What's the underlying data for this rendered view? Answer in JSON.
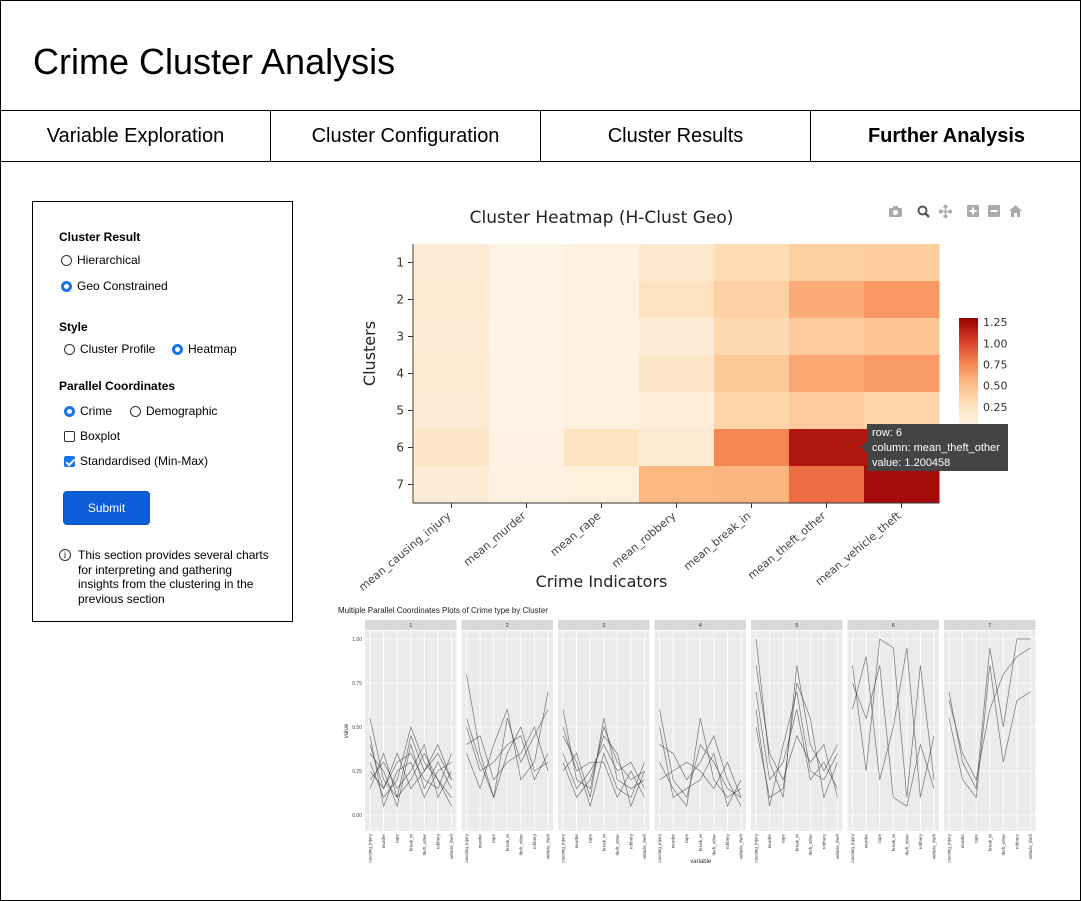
{
  "app": {
    "title": "Crime Cluster Analysis"
  },
  "tabs": [
    {
      "label": "Variable Exploration",
      "active": false
    },
    {
      "label": "Cluster Configuration",
      "active": false
    },
    {
      "label": "Cluster Results",
      "active": false
    },
    {
      "label": "Further Analysis",
      "active": true
    }
  ],
  "sidebar": {
    "cluster_result": {
      "title": "Cluster Result",
      "options": [
        "Hierarchical",
        "Geo Constrained"
      ],
      "selected": "Geo Constrained"
    },
    "style": {
      "title": "Style",
      "options": [
        "Cluster Profile",
        "Heatmap"
      ],
      "selected": "Heatmap"
    },
    "parallel": {
      "title": "Parallel Coordinates",
      "options": [
        "Crime",
        "Demographic"
      ],
      "selected": "Crime",
      "boxplot_label": "Boxplot",
      "boxplot_checked": false,
      "standardised_label": "Standardised (Min-Max)",
      "standardised_checked": true
    },
    "submit_label": "Submit",
    "info_text": "This section provides several charts for interpreting and gathering insights from the clustering in the previous section"
  },
  "toolbar": {
    "icons": [
      "camera-icon",
      "zoom-icon",
      "pan-icon",
      "zoom-in-icon",
      "zoom-out-icon",
      "home-icon"
    ]
  },
  "tooltip": {
    "row": "row: 6",
    "column": "column: mean_theft_other",
    "value": "value: 1.200458"
  },
  "colors": {
    "accent": "#1a73e8",
    "button": "#0b5ed7",
    "heat_low": "#fff5eb",
    "heat_high": "#990000"
  },
  "chart_data": [
    {
      "type": "heatmap",
      "title": "Cluster Heatmap (H-Clust Geo)",
      "xlabel": "Crime Indicators",
      "ylabel": "Clusters",
      "x": [
        "mean_causing_injury",
        "mean_murder",
        "mean_rape",
        "mean_robbery",
        "mean_break_in",
        "mean_theft_other",
        "mean_vehicle_theft"
      ],
      "y": [
        "1",
        "2",
        "3",
        "4",
        "5",
        "6",
        "7"
      ],
      "z": [
        [
          0.13,
          0.03,
          0.05,
          0.16,
          0.3,
          0.4,
          0.41
        ],
        [
          0.14,
          0.03,
          0.05,
          0.26,
          0.38,
          0.6,
          0.68
        ],
        [
          0.12,
          0.03,
          0.05,
          0.12,
          0.32,
          0.42,
          0.47
        ],
        [
          0.15,
          0.03,
          0.05,
          0.2,
          0.44,
          0.62,
          0.67
        ],
        [
          0.13,
          0.03,
          0.05,
          0.1,
          0.36,
          0.42,
          0.35
        ],
        [
          0.2,
          0.04,
          0.24,
          0.14,
          0.76,
          1.2,
          1.2
        ],
        [
          0.12,
          0.05,
          0.08,
          0.55,
          0.56,
          0.86,
          1.25
        ]
      ],
      "colorbar": {
        "ticks": [
          "0.25",
          "0.50",
          "0.75",
          "1.00",
          "1.25"
        ],
        "min": 0,
        "max": 1.3
      }
    },
    {
      "type": "line",
      "title": "Multiple Parallel Coordinates Plots of Crime type by Cluster",
      "xlabel": "variable",
      "ylabel": "value",
      "panels": [
        "1",
        "2",
        "3",
        "4",
        "5",
        "6",
        "7"
      ],
      "categories": [
        "causing_injury",
        "murder",
        "rape",
        "break_in",
        "theft_other",
        "robbery",
        "vehicle_theft"
      ],
      "yticks": [
        "0.00",
        "0.25",
        "0.50",
        "0.75",
        "1.00"
      ],
      "ylim": [
        0,
        1
      ],
      "series": [
        {
          "panel": 0,
          "values": [
            0.55,
            0.2,
            0.1,
            0.45,
            0.25,
            0.35,
            0.2
          ]
        },
        {
          "panel": 0,
          "values": [
            0.4,
            0.15,
            0.3,
            0.35,
            0.2,
            0.15,
            0.35
          ]
        },
        {
          "panel": 0,
          "values": [
            0.3,
            0.1,
            0.2,
            0.5,
            0.3,
            0.2,
            0.1
          ]
        },
        {
          "panel": 0,
          "values": [
            0.2,
            0.3,
            0.15,
            0.25,
            0.4,
            0.1,
            0.25
          ]
        },
        {
          "panel": 0,
          "values": [
            0.35,
            0.25,
            0.05,
            0.4,
            0.15,
            0.3,
            0.15
          ]
        },
        {
          "panel": 0,
          "values": [
            0.45,
            0.05,
            0.25,
            0.3,
            0.1,
            0.25,
            0.3
          ]
        },
        {
          "panel": 0,
          "values": [
            0.15,
            0.35,
            0.1,
            0.2,
            0.35,
            0.2,
            0.05
          ]
        },
        {
          "panel": 0,
          "values": [
            0.25,
            0.15,
            0.35,
            0.15,
            0.25,
            0.4,
            0.2
          ]
        },
        {
          "panel": 1,
          "values": [
            0.8,
            0.35,
            0.1,
            0.55,
            0.3,
            0.45,
            0.6
          ]
        },
        {
          "panel": 1,
          "values": [
            0.5,
            0.25,
            0.3,
            0.4,
            0.45,
            0.2,
            0.35
          ]
        },
        {
          "panel": 1,
          "values": [
            0.4,
            0.45,
            0.2,
            0.3,
            0.35,
            0.5,
            0.25
          ]
        },
        {
          "panel": 1,
          "values": [
            0.35,
            0.15,
            0.4,
            0.6,
            0.2,
            0.3,
            0.7
          ]
        },
        {
          "panel": 1,
          "values": [
            0.55,
            0.3,
            0.1,
            0.35,
            0.5,
            0.25,
            0.3
          ]
        },
        {
          "panel": 2,
          "values": [
            0.6,
            0.2,
            0.15,
            0.5,
            0.3,
            0.2,
            0.25
          ]
        },
        {
          "panel": 2,
          "values": [
            0.45,
            0.3,
            0.05,
            0.35,
            0.15,
            0.1,
            0.3
          ]
        },
        {
          "panel": 2,
          "values": [
            0.35,
            0.15,
            0.25,
            0.4,
            0.25,
            0.3,
            0.15
          ]
        },
        {
          "panel": 2,
          "values": [
            0.25,
            0.35,
            0.1,
            0.55,
            0.2,
            0.15,
            0.2
          ]
        },
        {
          "panel": 2,
          "values": [
            0.5,
            0.25,
            0.3,
            0.3,
            0.1,
            0.25,
            0.1
          ]
        },
        {
          "panel": 2,
          "values": [
            0.3,
            0.1,
            0.2,
            0.45,
            0.35,
            0.05,
            0.25
          ]
        },
        {
          "panel": 3,
          "values": [
            0.6,
            0.2,
            0.1,
            0.4,
            0.3,
            0.15,
            0.1
          ]
        },
        {
          "panel": 3,
          "values": [
            0.4,
            0.35,
            0.2,
            0.3,
            0.45,
            0.2,
            0.05
          ]
        },
        {
          "panel": 3,
          "values": [
            0.3,
            0.15,
            0.05,
            0.55,
            0.2,
            0.1,
            0.15
          ]
        },
        {
          "panel": 3,
          "values": [
            0.2,
            0.25,
            0.3,
            0.25,
            0.15,
            0.3,
            0.1
          ]
        },
        {
          "panel": 3,
          "values": [
            0.5,
            0.1,
            0.15,
            0.2,
            0.35,
            0.05,
            0.2
          ]
        },
        {
          "panel": 4,
          "values": [
            1.0,
            0.3,
            0.1,
            0.85,
            0.4,
            0.25,
            0.4
          ]
        },
        {
          "panel": 4,
          "values": [
            0.7,
            0.2,
            0.3,
            0.6,
            0.2,
            0.3,
            0.15
          ]
        },
        {
          "panel": 4,
          "values": [
            0.5,
            0.1,
            0.15,
            0.75,
            0.55,
            0.1,
            0.3
          ]
        },
        {
          "panel": 4,
          "values": [
            0.85,
            0.35,
            0.2,
            0.45,
            0.3,
            0.4,
            0.1
          ]
        },
        {
          "panel": 4,
          "values": [
            0.6,
            0.05,
            0.4,
            0.7,
            0.25,
            0.2,
            0.35
          ]
        },
        {
          "panel": 5,
          "values": [
            0.85,
            0.25,
            1.0,
            0.95,
            0.1,
            0.85,
            0.2
          ]
        },
        {
          "panel": 5,
          "values": [
            0.6,
            0.9,
            0.2,
            0.5,
            0.95,
            0.1,
            0.45
          ]
        },
        {
          "panel": 5,
          "values": [
            0.75,
            0.55,
            0.85,
            0.1,
            0.05,
            0.4,
            0.15
          ]
        },
        {
          "panel": 6,
          "values": [
            0.7,
            0.3,
            0.15,
            0.95,
            0.5,
            1.0,
            1.0
          ]
        },
        {
          "panel": 6,
          "values": [
            0.55,
            0.2,
            0.1,
            0.85,
            0.3,
            0.65,
            0.7
          ]
        },
        {
          "panel": 6,
          "values": [
            0.65,
            0.35,
            0.2,
            0.6,
            0.8,
            0.9,
            0.95
          ]
        }
      ]
    }
  ]
}
